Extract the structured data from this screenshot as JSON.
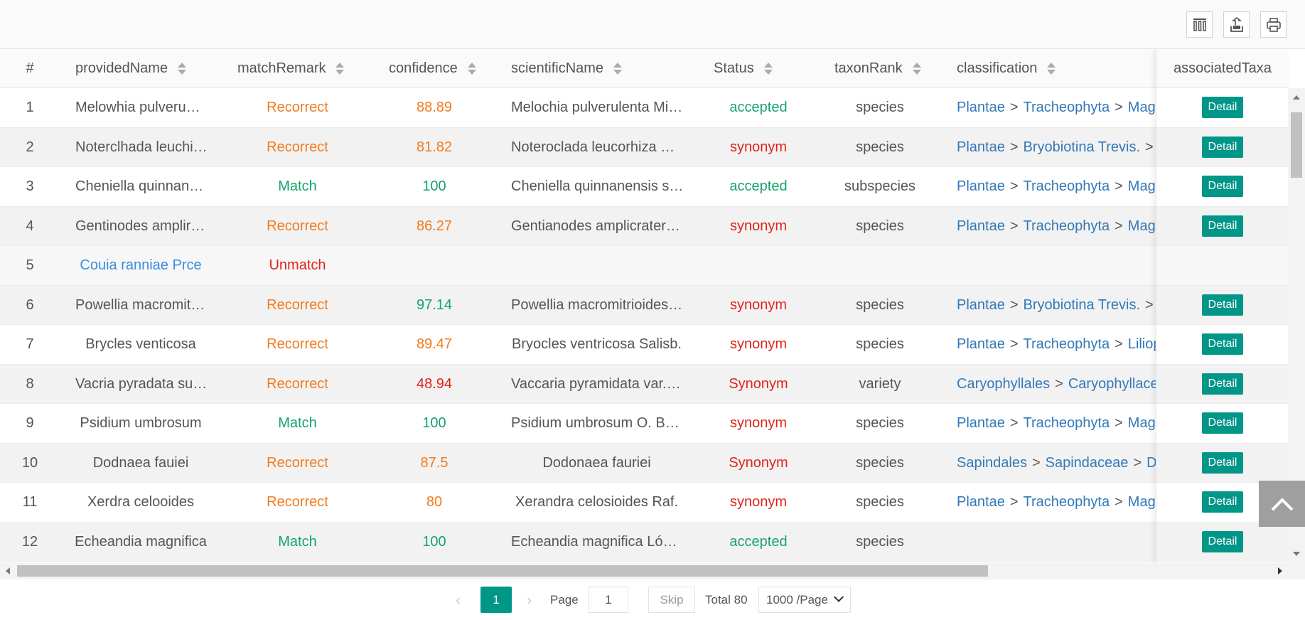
{
  "toolbar": {
    "icons": [
      "columns-icon",
      "export-icon",
      "print-icon"
    ]
  },
  "columns": {
    "num": "#",
    "providedName": "providedName",
    "matchRemark": "matchRemark",
    "confidence": "confidence",
    "scientificName": "scientificName",
    "status": "Status",
    "taxonRank": "taxonRank",
    "classification": "classification",
    "associatedTaxa": "associatedTaxa"
  },
  "rows": [
    {
      "num": "1",
      "providedName": "Melowhia pulveru…",
      "matchRemark": "Recorrect",
      "confidence": "88.89",
      "scientificName": "Melochia pulverulenta Mi…",
      "status": "accepted",
      "taxonRank": "species",
      "classification": [
        "Plantae",
        "Tracheophyta",
        "Magr"
      ],
      "detail": "Detail"
    },
    {
      "num": "2",
      "providedName": "Noterclhada leuchi…",
      "matchRemark": "Recorrect",
      "confidence": "81.82",
      "scientificName": "Noteroclada leucorhiza …",
      "status": "synonym",
      "taxonRank": "species",
      "classification": [
        "Plantae",
        "Bryobiotina Trevis.",
        ""
      ],
      "detail": "Detail"
    },
    {
      "num": "3",
      "providedName": "Cheniella quinnan…",
      "matchRemark": "Match",
      "confidence": "100",
      "scientificName": "Cheniella quinnanensis s…",
      "status": "accepted",
      "taxonRank": "subspecies",
      "classification": [
        "Plantae",
        "Tracheophyta",
        "Magr"
      ],
      "detail": "Detail"
    },
    {
      "num": "4",
      "providedName": "Gentinodes amplir…",
      "matchRemark": "Recorrect",
      "confidence": "86.27",
      "scientificName": "Gentianodes amplicrater…",
      "status": "synonym",
      "taxonRank": "species",
      "classification": [
        "Plantae",
        "Tracheophyta",
        "Magr"
      ],
      "detail": "Detail"
    },
    {
      "num": "5",
      "providedName": "Couia ranniae Prce",
      "matchRemark": "Unmatch",
      "confidence": "",
      "scientificName": "",
      "status": "",
      "taxonRank": "",
      "classification": [],
      "detail": ""
    },
    {
      "num": "6",
      "providedName": "Powellia macromit…",
      "matchRemark": "Recorrect",
      "confidence": "97.14",
      "scientificName": "Powellia macromitrioides…",
      "status": "synonym",
      "taxonRank": "species",
      "classification": [
        "Plantae",
        "Bryobiotina Trevis.",
        "I"
      ],
      "detail": "Detail"
    },
    {
      "num": "7",
      "providedName": "Brycles venticosa",
      "matchRemark": "Recorrect",
      "confidence": "89.47",
      "scientificName": "Bryocles ventricosa Salisb.",
      "status": "synonym",
      "taxonRank": "species",
      "classification": [
        "Plantae",
        "Tracheophyta",
        "Liliop"
      ],
      "detail": "Detail"
    },
    {
      "num": "8",
      "providedName": "Vacria pyradata su…",
      "matchRemark": "Recorrect",
      "confidence": "48.94",
      "scientificName": "Vaccaria pyramidata var.…",
      "status": "Synonym",
      "taxonRank": "variety",
      "classification": [
        "Caryophyllales",
        "Caryophyllace"
      ],
      "detail": "Detail"
    },
    {
      "num": "9",
      "providedName": "Psidium umbrosum",
      "matchRemark": "Match",
      "confidence": "100",
      "scientificName": "Psidium umbrosum O. B…",
      "status": "synonym",
      "taxonRank": "species",
      "classification": [
        "Plantae",
        "Tracheophyta",
        "Magr"
      ],
      "detail": "Detail"
    },
    {
      "num": "10",
      "providedName": "Dodnaea fauiei",
      "matchRemark": "Recorrect",
      "confidence": "87.5",
      "scientificName": "Dodonaea fauriei",
      "status": "Synonym",
      "taxonRank": "species",
      "classification": [
        "Sapindales",
        "Sapindaceae",
        "Do"
      ],
      "detail": "Detail"
    },
    {
      "num": "11",
      "providedName": "Xerdra celooides",
      "matchRemark": "Recorrect",
      "confidence": "80",
      "scientificName": "Xerandra celosioides Raf.",
      "status": "synonym",
      "taxonRank": "species",
      "classification": [
        "Plantae",
        "Tracheophyta",
        "Magr"
      ],
      "detail": "Detail"
    },
    {
      "num": "12",
      "providedName": "Echeandia magnifica",
      "matchRemark": "Match",
      "confidence": "100",
      "scientificName": "Echeandia magnifica Ló…",
      "status": "accepted",
      "taxonRank": "species",
      "classification": [],
      "detail": "Detail"
    }
  ],
  "pager": {
    "prev": "‹",
    "current": "1",
    "next": "›",
    "page_label": "Page",
    "page_input": "1",
    "skip": "Skip",
    "total": "Total 80",
    "page_size": "1000 /Page"
  },
  "colors": {
    "orange": "#f37b1d",
    "green": "#16a36b",
    "red": "#e0231b",
    "blue": "#3a8de0",
    "link": "#3378b8",
    "teal": "#009688"
  }
}
